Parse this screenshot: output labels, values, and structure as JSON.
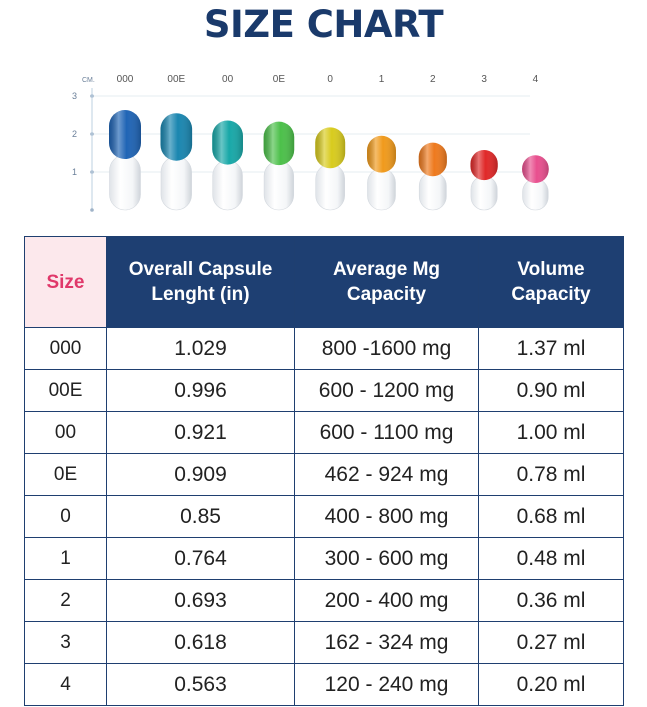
{
  "title": "SIZE CHART",
  "chart_data": {
    "type": "table",
    "axis": {
      "unit": "CM.",
      "ticks": [
        "3",
        "2",
        "1"
      ]
    },
    "capsules": [
      {
        "size": "000",
        "length_in": 1.029,
        "color": "#1f64b5"
      },
      {
        "size": "00E",
        "length_in": 0.996,
        "color": "#1a86b0"
      },
      {
        "size": "00",
        "length_in": 0.921,
        "color": "#18a8a8"
      },
      {
        "size": "0E",
        "length_in": 0.909,
        "color": "#4cc04a"
      },
      {
        "size": "0",
        "length_in": 0.85,
        "color": "#d8cb1e"
      },
      {
        "size": "1",
        "length_in": 0.764,
        "color": "#f09a1c"
      },
      {
        "size": "2",
        "length_in": 0.693,
        "color": "#ee7a1e"
      },
      {
        "size": "3",
        "length_in": 0.618,
        "color": "#e02828"
      },
      {
        "size": "4",
        "length_in": 0.563,
        "color": "#e84f8e"
      }
    ],
    "table": {
      "headers": [
        "Size",
        "Overall Capsule Lenght (in)",
        "Average Mg Capacity",
        "Volume Capacity"
      ],
      "rows": [
        [
          "000",
          "1.029",
          "800 -1600 mg",
          "1.37 ml"
        ],
        [
          "00E",
          "0.996",
          "600 - 1200 mg",
          "0.90 ml"
        ],
        [
          "00",
          "0.921",
          "600 - 1100 mg",
          "1.00 ml"
        ],
        [
          "0E",
          "0.909",
          "462 - 924 mg",
          "0.78 ml"
        ],
        [
          "0",
          "0.85",
          "400 - 800 mg",
          "0.68 ml"
        ],
        [
          "1",
          "0.764",
          "300 - 600 mg",
          "0.48 ml"
        ],
        [
          "2",
          "0.693",
          "200 - 400 mg",
          "0.36 ml"
        ],
        [
          "3",
          "0.618",
          "162 - 324 mg",
          "0.27 ml"
        ],
        [
          "4",
          "0.563",
          "120 - 240 mg",
          "0.20 ml"
        ]
      ]
    }
  }
}
